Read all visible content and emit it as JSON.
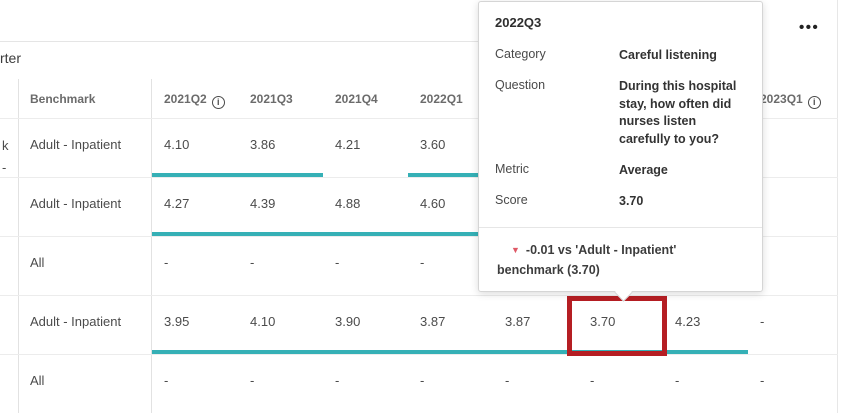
{
  "widget": {
    "title_fragment": "rter",
    "options_icon": "•••"
  },
  "colors": {
    "accent_teal": "#35b0b6",
    "highlight_red": "#b51e23",
    "delta_down": "#df5866"
  },
  "table": {
    "benchmark_header": "Benchmark",
    "quarter_headers": [
      {
        "label": "2021Q2",
        "info": true
      },
      {
        "label": "2021Q3",
        "info": false
      },
      {
        "label": "2021Q4",
        "info": false
      },
      {
        "label": "2022Q1",
        "info": false
      },
      {
        "label": "",
        "info": false
      },
      {
        "label": "",
        "info": false
      },
      {
        "label": "",
        "info": false
      },
      {
        "label": "2023Q1",
        "info": true
      }
    ],
    "rows": [
      {
        "stub_lines": [
          "k",
          "-"
        ],
        "benchmark": "Adult - Inpatient",
        "values": [
          "4.10",
          "3.86",
          "4.21",
          "3.60",
          "",
          "",
          "",
          ""
        ],
        "bars": [
          0,
          1,
          3
        ]
      },
      {
        "stub_lines": [],
        "benchmark": "Adult - Inpatient",
        "values": [
          "4.27",
          "4.39",
          "4.88",
          "4.60",
          "",
          "",
          "",
          ""
        ],
        "bars": [
          0,
          1,
          2,
          3
        ]
      },
      {
        "stub_lines": [],
        "benchmark": "All",
        "values": [
          "-",
          "-",
          "-",
          "-",
          "",
          "",
          "",
          ""
        ],
        "bars": []
      },
      {
        "stub_lines": [],
        "benchmark": "Adult - Inpatient",
        "values": [
          "3.95",
          "4.10",
          "3.90",
          "3.87",
          "3.87",
          "3.70",
          "4.23",
          "-"
        ],
        "bars": [
          0,
          1,
          2,
          3,
          4,
          5,
          6
        ],
        "highlight_col": 5
      },
      {
        "stub_lines": [],
        "benchmark": "All",
        "values": [
          "-",
          "-",
          "-",
          "-",
          "-",
          "-",
          "-",
          "-"
        ],
        "bars": []
      }
    ]
  },
  "tooltip": {
    "title": "2022Q3",
    "fields": [
      {
        "label": "Category",
        "value": "Careful listening"
      },
      {
        "label": "Question",
        "value": "During this hospital stay, how often did nurses listen carefully to you?"
      },
      {
        "label": "Metric",
        "value": "Average"
      },
      {
        "label": "Score",
        "value": "3.70"
      }
    ],
    "delta_icon": "▼",
    "delta_text": "-0.01 vs 'Adult - Inpatient' benchmark (3.70)"
  }
}
